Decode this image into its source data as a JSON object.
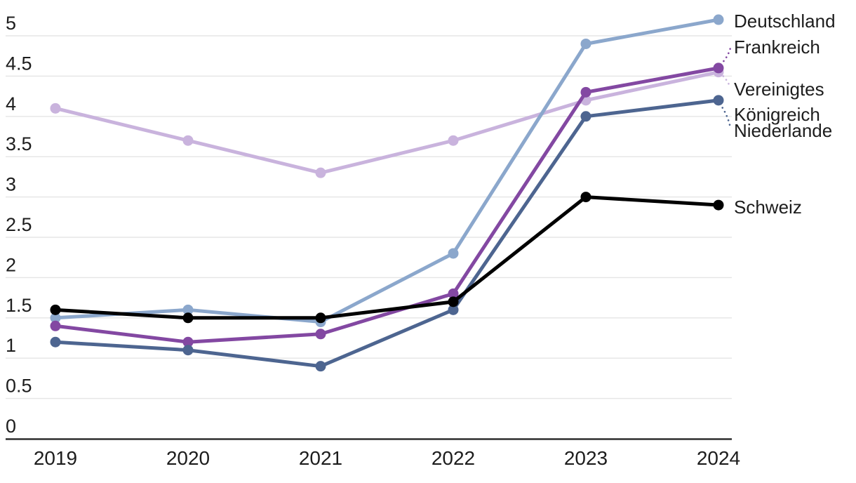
{
  "chart_data": {
    "type": "line",
    "title": "",
    "categories": [
      "2019",
      "2020",
      "2021",
      "2022",
      "2023",
      "2024"
    ],
    "series": [
      {
        "name": "Deutschland",
        "label_lines": [
          "Deutschland"
        ],
        "color": "#8ba7cc",
        "values": [
          1.5,
          1.6,
          1.45,
          2.3,
          4.9,
          5.2
        ]
      },
      {
        "name": "Frankreich",
        "label_lines": [
          "Frankreich"
        ],
        "color": "#8348a2",
        "values": [
          1.4,
          1.2,
          1.3,
          1.8,
          4.3,
          4.6
        ]
      },
      {
        "name": "Vereinigtes Königreich",
        "label_lines": [
          "Vereinigtes",
          "Königreich"
        ],
        "color": "#c9b3dd",
        "values": [
          4.1,
          3.7,
          3.3,
          3.7,
          4.2,
          4.55
        ]
      },
      {
        "name": "Niederlande",
        "label_lines": [
          "Niederlande"
        ],
        "color": "#4d6590",
        "values": [
          1.2,
          1.1,
          0.9,
          1.6,
          4.0,
          4.2
        ]
      },
      {
        "name": "Schweiz",
        "label_lines": [
          "Schweiz"
        ],
        "color": "#000000",
        "values": [
          1.6,
          1.5,
          1.5,
          1.7,
          3.0,
          2.9
        ]
      }
    ],
    "xlabel": "",
    "ylabel": "",
    "ylim": [
      0,
      5
    ],
    "ytick_step": 0.5,
    "y_tick_labels": [
      "0",
      "0.5",
      "1",
      "1.5",
      "2",
      "2.5",
      "3",
      "3.5",
      "4",
      "4.5",
      "5"
    ],
    "x_tick_labels": [
      "2019",
      "2020",
      "2021",
      "2022",
      "2023",
      "2024"
    ],
    "grid": "horizontal",
    "legend_position": "direct-labels-right",
    "colors": {
      "gridline": "#e5e5e5",
      "baseline_axis": "#2e2e2e",
      "tick_text": "#1d1d1d",
      "label_text": "#1d1d1d"
    }
  }
}
